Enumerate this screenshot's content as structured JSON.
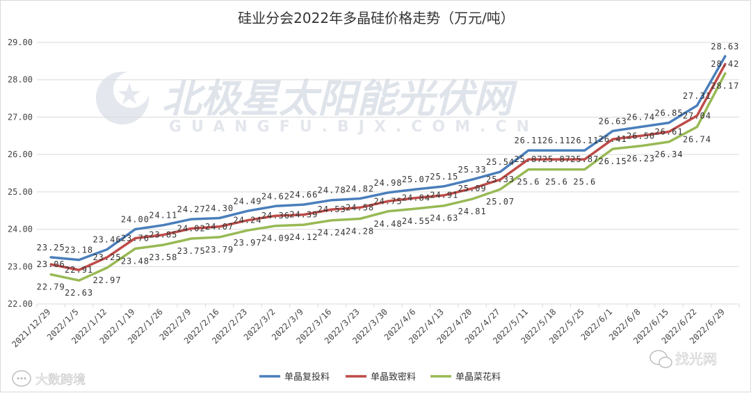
{
  "chart_data": {
    "type": "line",
    "title": "硅业分会2022年多晶硅价格走势（万元/吨）",
    "ylim": [
      22.0,
      29.0
    ],
    "yticks": [
      "22.00",
      "23.00",
      "24.00",
      "25.00",
      "26.00",
      "27.00",
      "28.00",
      "29.00"
    ],
    "categories": [
      "2021/12/29",
      "2022/1/5",
      "2022/1/12",
      "2022/1/19",
      "2022/1/26",
      "2022/2/9",
      "2022/2/16",
      "2022/2/23",
      "2022/3/2",
      "2022/3/9",
      "2022/3/16",
      "2022/3/23",
      "2022/3/30",
      "2022/4/6",
      "2022/4/13",
      "2022/4/20",
      "2022/4/27",
      "2022/5/11",
      "2022/5/18",
      "2022/5/25",
      "2022/6/1",
      "2022/6/8",
      "2022/6/15",
      "2022/6/22",
      "2022/6/29"
    ],
    "series": [
      {
        "name": "单晶复投料",
        "color": "#4a7ebb",
        "values": [
          23.25,
          23.18,
          23.46,
          24.0,
          24.11,
          24.27,
          24.3,
          24.49,
          24.62,
          24.66,
          24.78,
          24.82,
          24.98,
          25.07,
          25.15,
          25.33,
          25.54,
          26.11,
          26.11,
          26.11,
          26.63,
          26.74,
          26.85,
          27.31,
          28.63
        ],
        "labels": [
          "23.25",
          "23.18",
          "23.46",
          "24.00",
          "24.11",
          "24.27",
          "24.30",
          "24.49",
          "24.62",
          "24.66",
          "24.78",
          "24.82",
          "24.98",
          "25.07",
          "25.15",
          "25.33",
          "25.54",
          "26.11",
          "26.11",
          "26.11",
          "26.63",
          "26.74",
          "26.85",
          "27.31",
          "28.63"
        ]
      },
      {
        "name": "单晶致密料",
        "color": "#be4b48",
        "values": [
          23.06,
          22.91,
          23.25,
          23.76,
          23.85,
          24.02,
          24.07,
          24.24,
          24.36,
          24.39,
          24.53,
          24.58,
          24.75,
          24.84,
          24.91,
          25.09,
          25.33,
          25.87,
          25.87,
          25.87,
          26.41,
          26.5,
          26.61,
          27.04,
          28.42
        ],
        "labels": [
          "23.06",
          "22.91",
          "23.25",
          "23.76",
          "23.85",
          "24.02",
          "24.07",
          "24.24",
          "24.36",
          "24.39",
          "24.53",
          "24.58",
          "24.75",
          "24.84",
          "24.91",
          "25.09",
          "25.33",
          "25.87",
          "25.87",
          "25.87",
          "26.41",
          "26.50",
          "26.61",
          "27.04",
          "28.42"
        ]
      },
      {
        "name": "单晶菜花料",
        "color": "#98b954",
        "values": [
          22.79,
          22.63,
          22.97,
          23.48,
          23.58,
          23.75,
          23.79,
          23.97,
          24.09,
          24.12,
          24.24,
          24.28,
          24.48,
          24.55,
          24.63,
          24.81,
          25.07,
          25.6,
          25.6,
          25.6,
          26.15,
          26.23,
          26.34,
          26.74,
          28.17
        ],
        "labels": [
          "22.79",
          "22.63",
          "22.97",
          "23.48",
          "23.58",
          "23.75",
          "23.79",
          "23.97",
          "24.09",
          "24.12",
          "24.24",
          "24.28",
          "24.48",
          "24.55",
          "24.63",
          "24.81",
          "25.07",
          "25.6",
          "25.6",
          "25.6",
          "26.15",
          "26.23",
          "26.34",
          "26.74",
          "28.17"
        ]
      }
    ],
    "legend": "bottom"
  },
  "watermarks": {
    "center_main": "北极星太阳能光伏网",
    "center_sub": "GUANGFU.BJX.COM.CN",
    "bottom_left": "大数跨境",
    "bottom_right": "找光网"
  }
}
